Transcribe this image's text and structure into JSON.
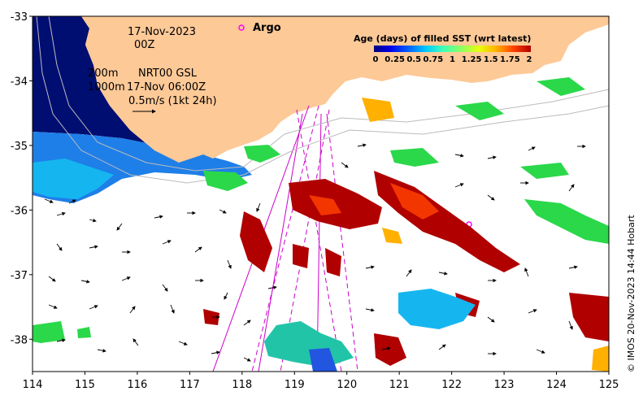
{
  "header": {
    "date": "17-Nov-2023",
    "hour": "00Z",
    "argo_label": "Argo"
  },
  "overlay_info": {
    "isobath_200": "200m",
    "isobath_1000": "1000m",
    "product": "NRT00 GSL",
    "product_time": "17-Nov 06:00Z",
    "scale_arrow": "0.5m/s (1kt 24h)"
  },
  "legend": {
    "title": "Age (days) of filled SST (wrt latest)",
    "ticks": [
      "0",
      "0.25",
      "0.5",
      "0.75",
      "1",
      "1.25",
      "1.5",
      "1.75",
      "2"
    ],
    "colors": [
      "#00007f",
      "#0000e8",
      "#0060ff",
      "#00c8ff",
      "#3fffb8",
      "#8fff60",
      "#e8ff10",
      "#ffb000",
      "#ff4000",
      "#b00000"
    ]
  },
  "axes": {
    "lon_ticks": [
      "114",
      "115",
      "116",
      "117",
      "118",
      "119",
      "120",
      "121",
      "122",
      "123",
      "124",
      "125"
    ],
    "lat_ticks": [
      "-33",
      "-34",
      "-35",
      "-36",
      "-37",
      "-38"
    ],
    "lon_range": [
      114,
      125
    ],
    "lat_range": [
      -38.5,
      -33
    ]
  },
  "colors": {
    "land": "#fdc997",
    "deep_shelf": "#000e72",
    "water_blue": "#1e7fe8",
    "argo_marker": "#ff00ff",
    "swath": "#cc00cc"
  },
  "credit": "© IMOS 20-Nov-2023 14:44 Hobart"
}
